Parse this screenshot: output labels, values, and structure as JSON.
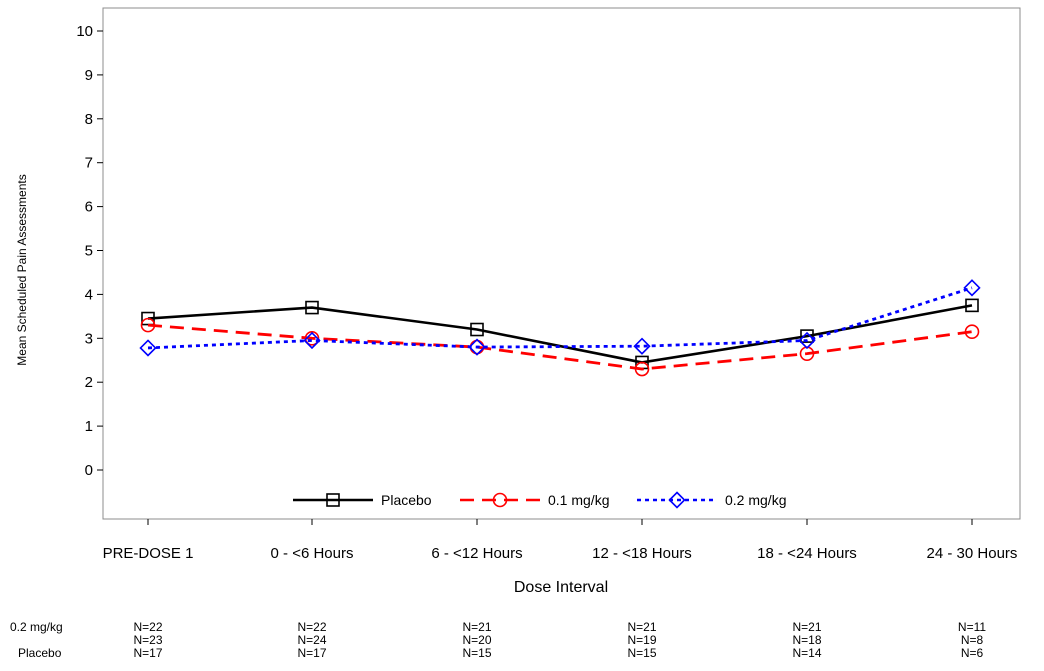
{
  "chart_data": {
    "type": "line",
    "categories": [
      "PRE-DOSE 1",
      "0 - <6 Hours",
      "6 - <12 Hours",
      "12 - <18 Hours",
      "18 - <24 Hours",
      "24 - 30 Hours"
    ],
    "xlabel": "Dose Interval",
    "ylabel": "Mean Scheduled Pain Assessments",
    "ylim": [
      -1.1,
      10.4
    ],
    "yticks": [
      0,
      1,
      2,
      3,
      4,
      5,
      6,
      7,
      8,
      9,
      10
    ],
    "grid": false,
    "legend_position": "bottom-inside",
    "series": [
      {
        "name": "Placebo",
        "values": [
          3.45,
          3.7,
          3.2,
          2.45,
          3.05,
          3.75
        ],
        "color": "#000000",
        "marker": "square",
        "dash": "solid"
      },
      {
        "name": "0.1 mg/kg",
        "values": [
          3.3,
          3.0,
          2.8,
          2.3,
          2.65,
          3.15
        ],
        "color": "#ff0000",
        "marker": "circle",
        "dash": "dashed"
      },
      {
        "name": "0.2 mg/kg",
        "values": [
          2.78,
          2.95,
          2.8,
          2.82,
          2.95,
          4.15
        ],
        "color": "#0000ff",
        "marker": "diamond",
        "dash": "dotted"
      }
    ],
    "n_table": {
      "rows": [
        {
          "label": "0.2 mg/kg",
          "values": [
            "N=22",
            "N=22",
            "N=21",
            "N=21",
            "N=21",
            "N=11"
          ]
        },
        {
          "label": "",
          "values": [
            "N=23",
            "N=24",
            "N=20",
            "N=19",
            "N=18",
            "N=8"
          ]
        },
        {
          "label": "Placebo",
          "values": [
            "N=17",
            "N=17",
            "N=15",
            "N=15",
            "N=14",
            "N=6"
          ]
        }
      ]
    }
  }
}
